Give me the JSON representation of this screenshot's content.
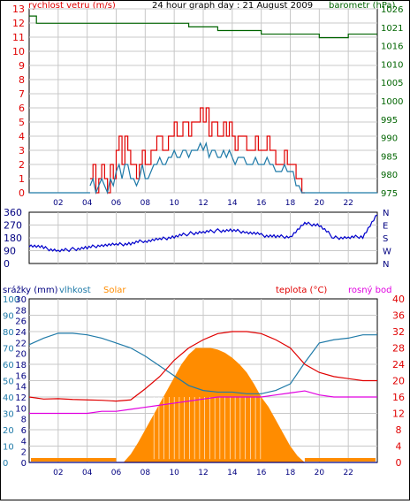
{
  "title": "24 hour graph day : 21 August 2009",
  "x_ticks": [
    "02",
    "04",
    "06",
    "08",
    "10",
    "12",
    "14",
    "16",
    "18",
    "20",
    "22"
  ],
  "colors": {
    "red": "#e00000",
    "blue": "#0000cc",
    "green": "#006400",
    "teal": "#1f7aa8",
    "orange": "#ff8c00",
    "magenta": "#e000e0",
    "navy": "#000080",
    "frame": "#000000",
    "grid": "#c8c8c8"
  },
  "chart_data": [
    {
      "type": "line",
      "name": "wind-barometer",
      "left_label": "rychlost vetru (m/s)",
      "right_label": "barometr (hPa)",
      "left_ticks": [
        "0",
        "1",
        "2",
        "3",
        "4",
        "5",
        "6",
        "7",
        "8",
        "9",
        "10",
        "11",
        "12",
        "13"
      ],
      "right_ticks": [
        "975",
        "980",
        "985",
        "990",
        "995",
        "1000",
        "1005",
        "1010",
        "1016",
        "1021",
        "1026"
      ],
      "ylim_left": [
        0,
        13
      ],
      "ylim_right": [
        975,
        1026
      ],
      "x_range_hours": [
        0,
        24
      ],
      "series": [
        {
          "key": "gust",
          "x": [
            4.2,
            4.4,
            4.6,
            4.8,
            5.0,
            5.2,
            5.4,
            5.6,
            5.8,
            6.0,
            6.2,
            6.4,
            6.6,
            6.8,
            7.0,
            7.2,
            7.4,
            7.6,
            7.8,
            8.0,
            8.2,
            8.4,
            8.6,
            8.8,
            9.0,
            9.2,
            9.4,
            9.6,
            9.8,
            10.0,
            10.2,
            10.4,
            10.6,
            10.8,
            11.0,
            11.2,
            11.4,
            11.6,
            11.8,
            12.0,
            12.2,
            12.4,
            12.6,
            12.8,
            13.0,
            13.2,
            13.4,
            13.6,
            13.8,
            14.0,
            14.2,
            14.4,
            14.6,
            14.8,
            15.0,
            15.2,
            15.4,
            15.6,
            15.8,
            16.0,
            16.2,
            16.4,
            16.6,
            16.8,
            17.0,
            17.2,
            17.4,
            17.6,
            17.8,
            18.0,
            18.2,
            18.4,
            18.6,
            18.8,
            19.0
          ],
          "values": [
            1,
            2,
            0,
            1,
            2,
            1,
            0,
            2,
            1,
            3,
            4,
            2,
            4,
            3,
            2,
            2,
            1,
            2,
            3,
            2,
            2,
            3,
            3,
            4,
            4,
            3,
            3,
            4,
            4,
            5,
            4,
            4,
            5,
            5,
            4,
            5,
            5,
            5,
            6,
            5,
            6,
            4,
            5,
            5,
            4,
            4,
            5,
            4,
            5,
            4,
            3,
            4,
            4,
            4,
            3,
            3,
            3,
            4,
            3,
            3,
            3,
            4,
            3,
            3,
            2,
            2,
            2,
            3,
            2,
            2,
            2,
            1,
            1,
            0,
            0
          ]
        },
        {
          "key": "wind_avg",
          "x": [
            4.2,
            4.4,
            4.6,
            4.8,
            5.0,
            5.2,
            5.4,
            5.6,
            5.8,
            6.0,
            6.2,
            6.4,
            6.6,
            6.8,
            7.0,
            7.2,
            7.4,
            7.6,
            7.8,
            8.0,
            8.2,
            8.4,
            8.6,
            8.8,
            9.0,
            9.2,
            9.4,
            9.6,
            9.8,
            10.0,
            10.2,
            10.4,
            10.6,
            10.8,
            11.0,
            11.2,
            11.4,
            11.6,
            11.8,
            12.0,
            12.2,
            12.4,
            12.6,
            12.8,
            13.0,
            13.2,
            13.4,
            13.6,
            13.8,
            14.0,
            14.2,
            14.4,
            14.6,
            14.8,
            15.0,
            15.2,
            15.4,
            15.6,
            15.8,
            16.0,
            16.2,
            16.4,
            16.6,
            16.8,
            17.0,
            17.2,
            17.4,
            17.6,
            17.8,
            18.0,
            18.2,
            18.4,
            18.6,
            18.8,
            19.0
          ],
          "values": [
            0.5,
            1,
            0,
            0.5,
            1,
            0.5,
            0,
            1,
            0.5,
            1.5,
            2,
            1,
            2,
            2,
            1,
            1,
            0.5,
            1,
            2,
            1,
            1,
            1.5,
            2,
            2,
            2.5,
            2,
            2,
            2.5,
            2.5,
            3,
            2.5,
            2.5,
            3,
            3,
            2.5,
            3,
            3,
            3,
            3.5,
            3,
            3.5,
            2.5,
            3,
            3,
            2.5,
            2.5,
            3,
            2.5,
            3,
            2.5,
            2,
            2.5,
            2.5,
            2.5,
            2,
            2,
            2,
            2.5,
            2,
            2,
            2,
            2.5,
            2,
            2,
            1.5,
            1.5,
            1.5,
            2,
            1.5,
            1.5,
            1.5,
            0.5,
            0.5,
            0,
            0
          ]
        },
        {
          "key": "barometer",
          "x": [
            0,
            0.5,
            1,
            4,
            8,
            11,
            13,
            14,
            16,
            18,
            20,
            22,
            24
          ],
          "values": [
            1024,
            1022,
            1022,
            1022,
            1022,
            1021,
            1020,
            1020,
            1019,
            1019,
            1018,
            1019,
            1019
          ]
        }
      ]
    },
    {
      "type": "line",
      "name": "wind-direction",
      "left_ticks": [
        "0",
        "90",
        "180",
        "270",
        "360"
      ],
      "right_ticks": [
        "N",
        "W",
        "S",
        "E",
        "N"
      ],
      "ylim": [
        0,
        360
      ],
      "x_range_hours": [
        0,
        24
      ],
      "series": [
        {
          "key": "direction",
          "x": [
            0,
            1,
            2,
            3,
            4,
            5,
            6,
            7,
            8,
            9,
            10,
            11,
            12,
            13,
            14,
            15,
            16,
            17,
            18,
            19,
            20,
            21,
            22,
            23,
            24
          ],
          "values": [
            130,
            110,
            90,
            100,
            110,
            130,
            130,
            140,
            160,
            170,
            190,
            210,
            220,
            230,
            230,
            220,
            200,
            190,
            190,
            280,
            270,
            180,
            180,
            190,
            340
          ]
        }
      ]
    },
    {
      "type": "area",
      "name": "rain-humidity-solar-temperature",
      "labels": {
        "rain": "srážky (mm)",
        "humidity": "vlhkost",
        "solar": "Solar",
        "temperature": "teplota (°C)",
        "dew": "rosný bod"
      },
      "left_ticks_rain": [
        "0",
        "2",
        "4",
        "6",
        "8",
        "10",
        "12",
        "14",
        "16",
        "18",
        "20",
        "22",
        "24",
        "26",
        "28",
        "30"
      ],
      "left_ticks_humidity": [
        "0",
        "10",
        "20",
        "30",
        "40",
        "50",
        "60",
        "70",
        "80",
        "90",
        "100"
      ],
      "right_ticks_temp": [
        "0",
        "4",
        "8",
        "12",
        "16",
        "20",
        "24",
        "28",
        "32",
        "36",
        "40"
      ],
      "ylim_humidity": [
        0,
        100
      ],
      "ylim_temperature": [
        0,
        40
      ],
      "x_range_hours": [
        0,
        24
      ],
      "series": [
        {
          "key": "solar",
          "x": [
            0,
            6,
            6.5,
            7,
            7.5,
            8,
            8.5,
            9,
            9.5,
            10,
            10.5,
            11,
            11.5,
            12,
            12.5,
            13,
            13.5,
            14,
            14.5,
            15,
            15.5,
            16,
            16.5,
            17,
            17.5,
            18,
            18.5,
            19,
            24
          ],
          "values": [
            0,
            0,
            0,
            5,
            12,
            20,
            28,
            36,
            44,
            52,
            60,
            66,
            70,
            70,
            70,
            69,
            67,
            64,
            60,
            55,
            48,
            40,
            34,
            26,
            18,
            10,
            4,
            0,
            0
          ]
        },
        {
          "key": "humidity",
          "x": [
            0,
            1,
            2,
            3,
            4,
            5,
            6,
            7,
            8,
            9,
            10,
            11,
            12,
            13,
            14,
            15,
            16,
            17,
            18,
            19,
            20,
            21,
            22,
            23,
            24
          ],
          "values": [
            72,
            76,
            79,
            79,
            78,
            76,
            73,
            70,
            65,
            59,
            53,
            47,
            44,
            43,
            43,
            42,
            42,
            44,
            48,
            61,
            73,
            75,
            76,
            78,
            78
          ]
        },
        {
          "key": "temperature",
          "x": [
            0,
            1,
            2,
            3,
            4,
            5,
            6,
            7,
            8,
            9,
            10,
            11,
            12,
            13,
            14,
            15,
            16,
            17,
            18,
            19,
            20,
            21,
            22,
            23,
            24
          ],
          "values": [
            16,
            15.5,
            15.6,
            15.4,
            15.3,
            15.2,
            15.0,
            15.3,
            18.0,
            21.0,
            25.0,
            28.0,
            30.0,
            31.5,
            32.0,
            32.0,
            31.5,
            30.0,
            28.0,
            24.0,
            22.0,
            21.0,
            20.5,
            20.0,
            20.0
          ]
        },
        {
          "key": "dew",
          "x": [
            0,
            1,
            2,
            3,
            4,
            5,
            6,
            7,
            8,
            9,
            10,
            11,
            12,
            13,
            14,
            15,
            16,
            17,
            18,
            19,
            20,
            21,
            22,
            23,
            24
          ],
          "values": [
            12,
            12,
            12,
            12,
            12,
            12.5,
            12.5,
            13,
            13.5,
            14,
            14.5,
            15,
            15.5,
            16,
            16,
            16,
            16,
            16.5,
            17,
            17.5,
            16.5,
            16,
            16,
            16,
            16
          ]
        },
        {
          "key": "rain",
          "x": [
            0,
            24
          ],
          "values": [
            0,
            0
          ]
        }
      ]
    }
  ]
}
